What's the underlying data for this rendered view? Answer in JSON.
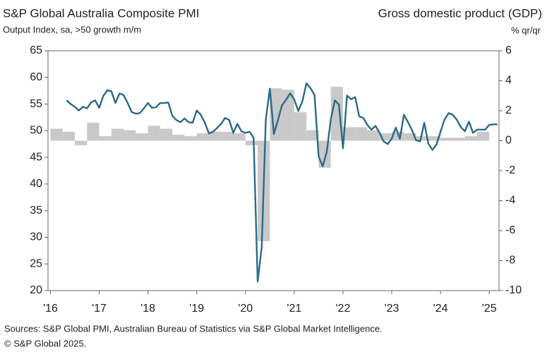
{
  "chart_data": {
    "type": "line-bar",
    "title": "S&P Global Australia Composite PMI",
    "subtitle": "Output Index, sa, >50 growth m/m",
    "y2_title": "Gross domestic product (GDP)",
    "y2_subtitle": "% qr/qr",
    "source": "Sources: S&P Global PMI, Australian Bureau of Statistics via S&P Global Market Intelligence.",
    "copyright": "© S&P Global 2025.",
    "xlim": [
      2015.95,
      2025.2
    ],
    "xticks": [
      {
        "value": 2016,
        "label": "'16"
      },
      {
        "value": 2017,
        "label": "'17"
      },
      {
        "value": 2018,
        "label": "'18"
      },
      {
        "value": 2019,
        "label": "'19"
      },
      {
        "value": 2020,
        "label": "'20"
      },
      {
        "value": 2021,
        "label": "'21"
      },
      {
        "value": 2022,
        "label": "'22"
      },
      {
        "value": 2023,
        "label": "'23"
      },
      {
        "value": 2024,
        "label": "'24"
      },
      {
        "value": 2025,
        "label": "'25"
      }
    ],
    "ylim": [
      20,
      65
    ],
    "yticks": [
      20,
      25,
      30,
      35,
      40,
      45,
      50,
      55,
      60,
      65
    ],
    "y2lim": [
      -10,
      6
    ],
    "y2ticks": [
      -10,
      -8,
      -6,
      -4,
      -2,
      0,
      2,
      4,
      6
    ],
    "series": [
      {
        "type": "bar",
        "axis": "y2",
        "color": "#c9c9c9",
        "x": [
          2016,
          2016.25,
          2016.5,
          2016.75,
          2017,
          2017.25,
          2017.5,
          2017.75,
          2018,
          2018.25,
          2018.5,
          2018.75,
          2019,
          2019.25,
          2019.5,
          2019.75,
          2020,
          2020.25,
          2020.5,
          2020.75,
          2021,
          2021.25,
          2021.5,
          2021.75,
          2022,
          2022.25,
          2022.5,
          2022.75,
          2023,
          2023.25,
          2023.5,
          2023.75,
          2024,
          2024.25,
          2024.5,
          2024.75
        ],
        "values": [
          0.8,
          0.6,
          -0.3,
          1.2,
          0.3,
          0.8,
          0.7,
          0.5,
          1.0,
          0.8,
          0.4,
          0.3,
          0.5,
          0.6,
          0.6,
          0.5,
          -0.3,
          -6.7,
          3.5,
          3.4,
          1.9,
          0.7,
          -1.8,
          3.6,
          0.9,
          0.9,
          0.7,
          0.5,
          0.6,
          0.5,
          0.3,
          0.3,
          0.2,
          0.2,
          0.3,
          0.6
        ]
      },
      {
        "type": "line",
        "axis": "y",
        "color": "#2b6a87",
        "x": [
          2016.333,
          2016.417,
          2016.5,
          2016.583,
          2016.667,
          2016.75,
          2016.833,
          2016.917,
          2017,
          2017.083,
          2017.167,
          2017.25,
          2017.333,
          2017.417,
          2017.5,
          2017.583,
          2017.667,
          2017.75,
          2017.833,
          2017.917,
          2018,
          2018.083,
          2018.167,
          2018.25,
          2018.333,
          2018.417,
          2018.5,
          2018.583,
          2018.667,
          2018.75,
          2018.833,
          2018.917,
          2019,
          2019.083,
          2019.167,
          2019.25,
          2019.333,
          2019.417,
          2019.5,
          2019.583,
          2019.667,
          2019.75,
          2019.833,
          2019.917,
          2020,
          2020.083,
          2020.167,
          2020.25,
          2020.333,
          2020.417,
          2020.5,
          2020.583,
          2020.667,
          2020.75,
          2020.833,
          2020.917,
          2021,
          2021.083,
          2021.167,
          2021.25,
          2021.333,
          2021.417,
          2021.5,
          2021.583,
          2021.667,
          2021.75,
          2021.833,
          2021.917,
          2022,
          2022.083,
          2022.167,
          2022.25,
          2022.333,
          2022.417,
          2022.5,
          2022.583,
          2022.667,
          2022.75,
          2022.833,
          2022.917,
          2023,
          2023.083,
          2023.167,
          2023.25,
          2023.333,
          2023.417,
          2023.5,
          2023.583,
          2023.667,
          2023.75,
          2023.833,
          2023.917,
          2024,
          2024.083,
          2024.167,
          2024.25,
          2024.333,
          2024.417,
          2024.5,
          2024.583,
          2024.667,
          2024.75,
          2024.833,
          2024.917,
          2025,
          2025.083,
          2025.167
        ],
        "values": [
          55.7,
          55.0,
          54.5,
          53.8,
          54.5,
          54.2,
          55.3,
          55.7,
          54.3,
          56.5,
          57.6,
          57.4,
          55.2,
          57.0,
          56.7,
          55.2,
          53.5,
          53.2,
          53.3,
          54.2,
          55.2,
          54.3,
          54.4,
          55.2,
          55.2,
          55.3,
          52.8,
          52.0,
          51.6,
          52.3,
          51.6,
          51.5,
          53.8,
          53.0,
          51.5,
          49.5,
          49.8,
          50.5,
          51.3,
          52.4,
          52.0,
          49.6,
          51.3,
          49.9,
          49.6,
          49.8,
          48.7,
          21.7,
          28.1,
          52.1,
          57.9,
          49.4,
          52.0,
          54.8,
          55.8,
          57.0,
          55.9,
          53.7,
          55.5,
          58.9,
          58.0,
          56.7,
          45.2,
          43.3,
          46.0,
          52.1,
          55.7,
          54.9,
          46.7,
          56.6,
          55.9,
          56.3,
          52.7,
          52.4,
          51.1,
          50.2,
          50.9,
          49.6,
          48.0,
          47.5,
          48.5,
          50.6,
          48.5,
          53.0,
          51.6,
          50.1,
          48.2,
          48.0,
          51.5,
          47.6,
          46.4,
          47.4,
          49.8,
          52.1,
          53.3,
          53.0,
          52.1,
          50.7,
          49.9,
          51.7,
          49.6,
          50.2,
          50.2,
          50.2,
          51.1,
          51.2,
          51.2
        ]
      }
    ]
  }
}
